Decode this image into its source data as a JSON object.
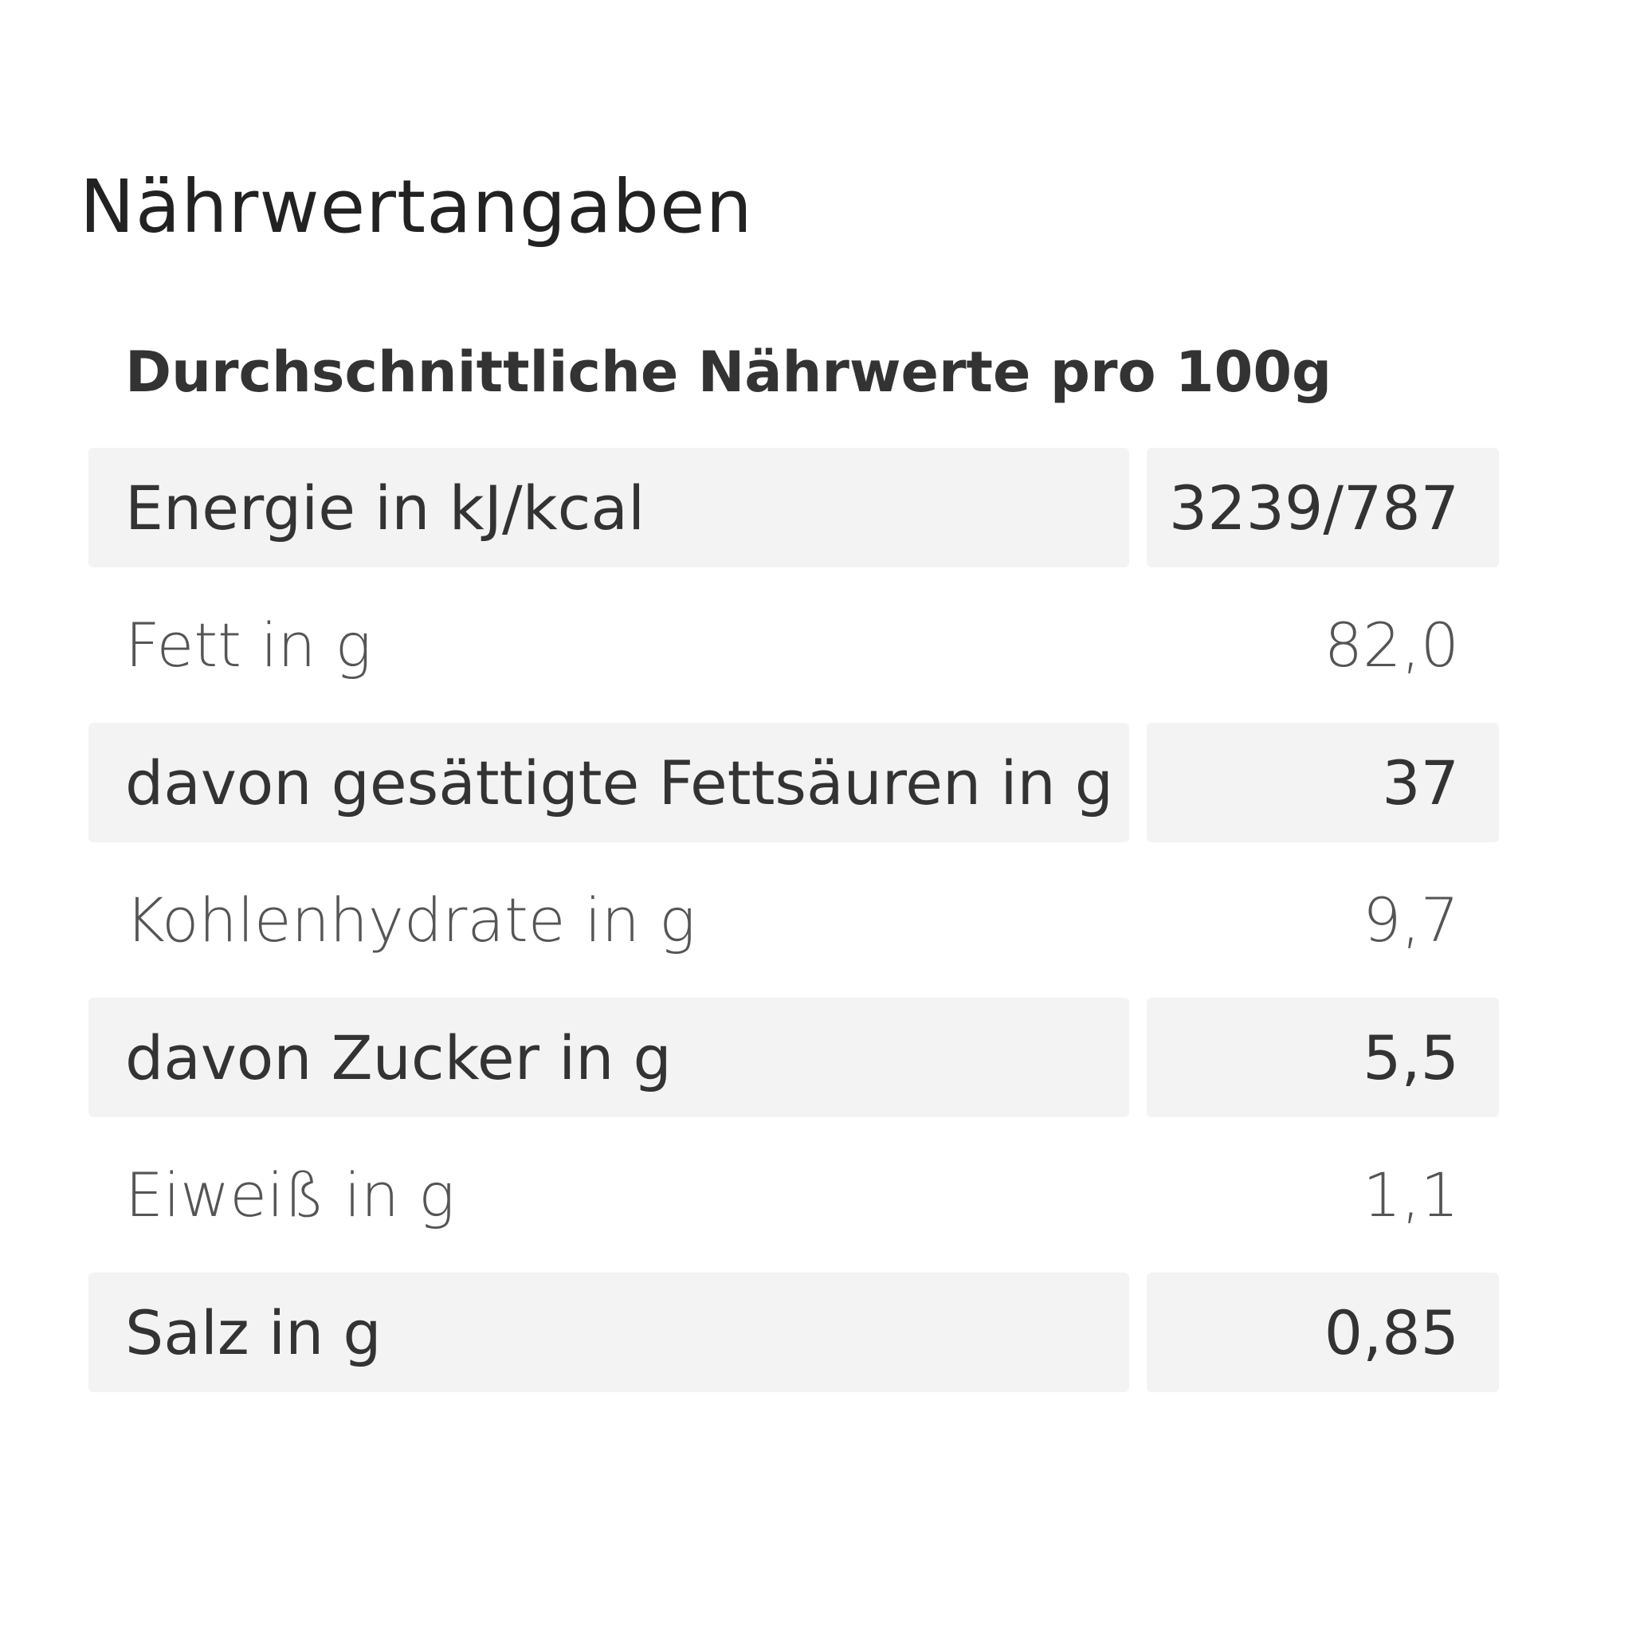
{
  "header": {
    "title": "Nährwertangaben"
  },
  "table": {
    "caption": "Durchschnittliche Nährwerte pro 100g",
    "rows": [
      [
        "Energie in kJ/kcal",
        "3239/787"
      ],
      [
        "Fett in g",
        "82,0"
      ],
      [
        "davon gesättigte Fettsäuren in g",
        "37"
      ],
      [
        "Kohlenhydrate in g",
        "9,7"
      ],
      [
        "davon Zucker in g",
        "5,5"
      ],
      [
        "Eiweiß in g",
        "1,1"
      ],
      [
        "Salz in g",
        "0,85"
      ]
    ]
  }
}
